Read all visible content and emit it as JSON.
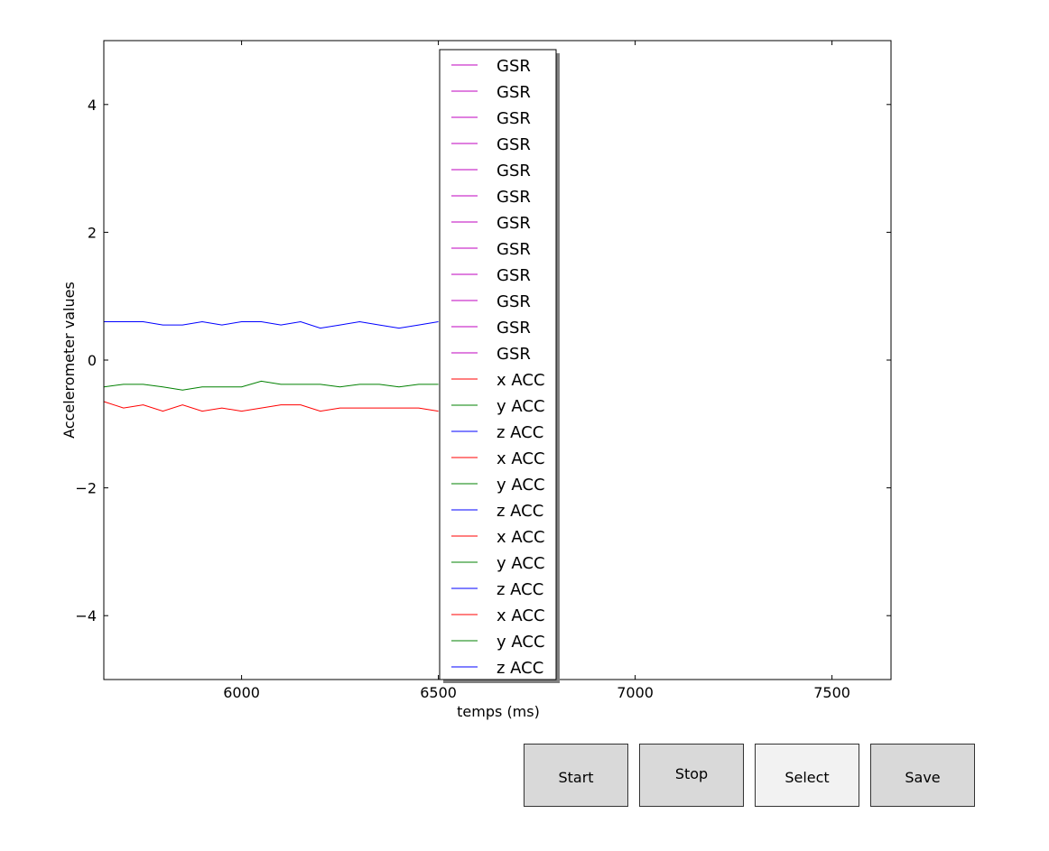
{
  "chart_data": {
    "type": "line",
    "title": "",
    "xlabel": "temps (ms)",
    "ylabel": "Accelerometer values",
    "xlim": [
      5650,
      7650
    ],
    "ylim": [
      -5,
      5
    ],
    "xticks": [
      6000,
      6500,
      7000,
      7500
    ],
    "yticks": [
      4,
      2,
      0,
      -2,
      -4
    ],
    "ytick_labels": [
      "4",
      "2",
      "0",
      "−2",
      "−4"
    ],
    "grid": false,
    "legend_position": "top-center",
    "legend": [
      {
        "label": "GSR",
        "color": "#bf00bf"
      },
      {
        "label": "GSR",
        "color": "#bf00bf"
      },
      {
        "label": "GSR",
        "color": "#bf00bf"
      },
      {
        "label": "GSR",
        "color": "#bf00bf"
      },
      {
        "label": "GSR",
        "color": "#bf00bf"
      },
      {
        "label": "GSR",
        "color": "#bf00bf"
      },
      {
        "label": "GSR",
        "color": "#bf00bf"
      },
      {
        "label": "GSR",
        "color": "#bf00bf"
      },
      {
        "label": "GSR",
        "color": "#bf00bf"
      },
      {
        "label": "GSR",
        "color": "#bf00bf"
      },
      {
        "label": "GSR",
        "color": "#bf00bf"
      },
      {
        "label": "GSR",
        "color": "#bf00bf"
      },
      {
        "label": "x ACC",
        "color": "#ff0000"
      },
      {
        "label": "y ACC",
        "color": "#008000"
      },
      {
        "label": "z ACC",
        "color": "#0000ff"
      },
      {
        "label": "x ACC",
        "color": "#ff0000"
      },
      {
        "label": "y ACC",
        "color": "#008000"
      },
      {
        "label": "z ACC",
        "color": "#0000ff"
      },
      {
        "label": "x ACC",
        "color": "#ff0000"
      },
      {
        "label": "y ACC",
        "color": "#008000"
      },
      {
        "label": "z ACC",
        "color": "#0000ff"
      },
      {
        "label": "x ACC",
        "color": "#ff0000"
      },
      {
        "label": "y ACC",
        "color": "#008000"
      },
      {
        "label": "z ACC",
        "color": "#0000ff"
      }
    ],
    "series": [
      {
        "color": "#0000ff",
        "points": [
          [
            5650,
            0.6
          ],
          [
            5700,
            0.6
          ],
          [
            5750,
            0.6
          ],
          [
            5800,
            0.55
          ],
          [
            5850,
            0.55
          ],
          [
            5900,
            0.6
          ],
          [
            5950,
            0.55
          ],
          [
            6000,
            0.6
          ],
          [
            6050,
            0.6
          ],
          [
            6100,
            0.55
          ],
          [
            6150,
            0.6
          ],
          [
            6200,
            0.5
          ],
          [
            6250,
            0.55
          ],
          [
            6300,
            0.6
          ],
          [
            6350,
            0.55
          ],
          [
            6400,
            0.5
          ],
          [
            6450,
            0.55
          ],
          [
            6500,
            0.6
          ]
        ]
      },
      {
        "color": "#008000",
        "points": [
          [
            5650,
            -0.42
          ],
          [
            5700,
            -0.38
          ],
          [
            5750,
            -0.38
          ],
          [
            5800,
            -0.42
          ],
          [
            5850,
            -0.47
          ],
          [
            5900,
            -0.42
          ],
          [
            5950,
            -0.42
          ],
          [
            6000,
            -0.42
          ],
          [
            6050,
            -0.33
          ],
          [
            6100,
            -0.38
          ],
          [
            6150,
            -0.38
          ],
          [
            6200,
            -0.38
          ],
          [
            6250,
            -0.42
          ],
          [
            6300,
            -0.38
          ],
          [
            6350,
            -0.38
          ],
          [
            6400,
            -0.42
          ],
          [
            6450,
            -0.38
          ],
          [
            6500,
            -0.38
          ]
        ]
      },
      {
        "color": "#ff0000",
        "points": [
          [
            5650,
            -0.65
          ],
          [
            5700,
            -0.75
          ],
          [
            5750,
            -0.7
          ],
          [
            5800,
            -0.8
          ],
          [
            5850,
            -0.7
          ],
          [
            5900,
            -0.8
          ],
          [
            5950,
            -0.75
          ],
          [
            6000,
            -0.8
          ],
          [
            6050,
            -0.75
          ],
          [
            6100,
            -0.7
          ],
          [
            6150,
            -0.7
          ],
          [
            6200,
            -0.8
          ],
          [
            6250,
            -0.75
          ],
          [
            6300,
            -0.75
          ],
          [
            6350,
            -0.75
          ],
          [
            6400,
            -0.75
          ],
          [
            6450,
            -0.75
          ],
          [
            6500,
            -0.8
          ]
        ]
      }
    ]
  },
  "buttons": {
    "start": "Start",
    "stop": "Stop",
    "select": "Select",
    "save": "Save"
  }
}
